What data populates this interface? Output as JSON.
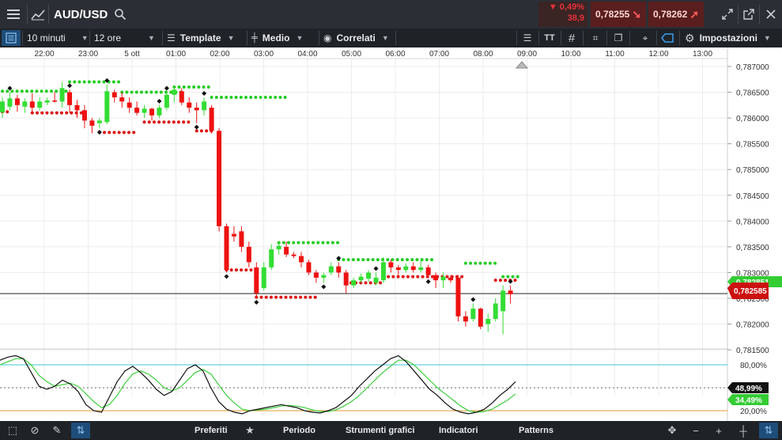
{
  "header": {
    "symbol": "AUD/USD",
    "change_percent": "▼ 0,49%",
    "change_points": "38,9",
    "sell_price": "0,78255",
    "buy_price": "0,78262"
  },
  "toolbar": {
    "timeframe": "10 minuti",
    "range": "12 ore",
    "template": "Template",
    "average": "Medio",
    "correlated": "Correlati",
    "settings": "Impostazioni",
    "text_tool": "TT"
  },
  "time_axis": [
    "22:00",
    "23:00",
    "5 ott",
    "01:00",
    "02:00",
    "03:00",
    "04:00",
    "05:00",
    "06:00",
    "07:00",
    "08:00",
    "09:00",
    "10:00",
    "11:00",
    "12:00",
    "13:00"
  ],
  "price_axis": [
    "0,787000",
    "0,786500",
    "0,786000",
    "0,785500",
    "0,785000",
    "0,784500",
    "0,784000",
    "0,783500",
    "0,783000",
    "0,782500",
    "0,782000",
    "0,781500"
  ],
  "current_price_label": "0,782585",
  "hidden_price_label": "0,782851",
  "oscillator": {
    "levels": [
      "80,00%",
      "20,00%"
    ],
    "value_black": "48,99%",
    "value_green": "34,49%"
  },
  "bottom": {
    "favorites": "Preferiti",
    "period": "Periodo",
    "chart_tools": "Strumenti grafici",
    "indicators": "Indicatori",
    "patterns": "Patterns"
  },
  "colors": {
    "bull": "#33dd33",
    "bear": "#ee1111",
    "toolbar": "#1f2328",
    "topbar": "#2b2f35",
    "accent_blue": "#1e7fd8"
  },
  "chart_data": {
    "type": "candlestick",
    "ylim": [
      0.7813,
      0.7873
    ],
    "candles": [
      {
        "t": "21:50",
        "o": 0.78611,
        "h": 0.7864,
        "l": 0.786,
        "c": 0.78632
      },
      {
        "t": "22:00",
        "o": 0.78622,
        "h": 0.7865,
        "l": 0.78615,
        "c": 0.78638
      },
      {
        "t": "22:10",
        "o": 0.78638,
        "h": 0.78645,
        "l": 0.78612,
        "c": 0.78625
      },
      {
        "t": "22:20",
        "o": 0.78622,
        "h": 0.78638,
        "l": 0.7861,
        "c": 0.78632
      },
      {
        "t": "22:30",
        "o": 0.78632,
        "h": 0.78648,
        "l": 0.78612,
        "c": 0.7862
      },
      {
        "t": "22:40",
        "o": 0.7862,
        "h": 0.7864,
        "l": 0.78615,
        "c": 0.78632
      },
      {
        "t": "22:50",
        "o": 0.7863,
        "h": 0.7864,
        "l": 0.78625,
        "c": 0.78634
      },
      {
        "t": "23:00",
        "o": 0.78634,
        "h": 0.7865,
        "l": 0.7863,
        "c": 0.78632
      },
      {
        "t": "23:10",
        "o": 0.78632,
        "h": 0.7867,
        "l": 0.7862,
        "c": 0.78658
      },
      {
        "t": "23:20",
        "o": 0.7865,
        "h": 0.78655,
        "l": 0.7861,
        "c": 0.78625
      },
      {
        "t": "23:30",
        "o": 0.78625,
        "h": 0.78635,
        "l": 0.786,
        "c": 0.78615
      },
      {
        "t": "23:40",
        "o": 0.78615,
        "h": 0.78625,
        "l": 0.7858,
        "c": 0.78595
      },
      {
        "t": "23:50",
        "o": 0.78595,
        "h": 0.786,
        "l": 0.7857,
        "c": 0.78585
      },
      {
        "t": "00:00",
        "o": 0.7859,
        "h": 0.786,
        "l": 0.7858,
        "c": 0.78595
      },
      {
        "t": "00:10",
        "o": 0.78592,
        "h": 0.78665,
        "l": 0.78588,
        "c": 0.78652
      },
      {
        "t": "00:20",
        "o": 0.7865,
        "h": 0.78655,
        "l": 0.7863,
        "c": 0.7864
      },
      {
        "t": "00:30",
        "o": 0.7864,
        "h": 0.7865,
        "l": 0.7862,
        "c": 0.78632
      },
      {
        "t": "00:40",
        "o": 0.7863,
        "h": 0.7864,
        "l": 0.7861,
        "c": 0.7862
      },
      {
        "t": "00:50",
        "o": 0.7862,
        "h": 0.78632,
        "l": 0.78605,
        "c": 0.7861
      },
      {
        "t": "01:00",
        "o": 0.7861,
        "h": 0.78625,
        "l": 0.786,
        "c": 0.78618
      },
      {
        "t": "01:10",
        "o": 0.78618,
        "h": 0.7862,
        "l": 0.78595,
        "c": 0.78605
      },
      {
        "t": "01:20",
        "o": 0.78605,
        "h": 0.78625,
        "l": 0.786,
        "c": 0.7862
      },
      {
        "t": "01:30",
        "o": 0.7862,
        "h": 0.7865,
        "l": 0.78615,
        "c": 0.78645
      },
      {
        "t": "01:40",
        "o": 0.78645,
        "h": 0.7866,
        "l": 0.7863,
        "c": 0.78655
      },
      {
        "t": "01:50",
        "o": 0.78652,
        "h": 0.78658,
        "l": 0.78625,
        "c": 0.7863
      },
      {
        "t": "02:00",
        "o": 0.7863,
        "h": 0.7864,
        "l": 0.7861,
        "c": 0.7862
      },
      {
        "t": "02:10",
        "o": 0.7862,
        "h": 0.7863,
        "l": 0.7859,
        "c": 0.78615
      },
      {
        "t": "02:20",
        "o": 0.78615,
        "h": 0.7864,
        "l": 0.78605,
        "c": 0.78632
      },
      {
        "t": "02:30",
        "o": 0.7862,
        "h": 0.78625,
        "l": 0.7857,
        "c": 0.78575
      },
      {
        "t": "02:40",
        "o": 0.78575,
        "h": 0.7858,
        "l": 0.7838,
        "c": 0.7839
      },
      {
        "t": "02:50",
        "o": 0.7839,
        "h": 0.78395,
        "l": 0.783,
        "c": 0.78305
      },
      {
        "t": "03:00",
        "o": 0.78375,
        "h": 0.7839,
        "l": 0.7836,
        "c": 0.7837
      },
      {
        "t": "03:10",
        "o": 0.7838,
        "h": 0.7839,
        "l": 0.7834,
        "c": 0.7835
      },
      {
        "t": "03:20",
        "o": 0.7835,
        "h": 0.7836,
        "l": 0.7831,
        "c": 0.7832
      },
      {
        "t": "03:30",
        "o": 0.7831,
        "h": 0.7832,
        "l": 0.7825,
        "c": 0.7826
      },
      {
        "t": "03:40",
        "o": 0.7827,
        "h": 0.7832,
        "l": 0.78265,
        "c": 0.7831
      },
      {
        "t": "03:50",
        "o": 0.7831,
        "h": 0.78355,
        "l": 0.78305,
        "c": 0.78345
      },
      {
        "t": "04:00",
        "o": 0.78345,
        "h": 0.7836,
        "l": 0.78335,
        "c": 0.78352
      },
      {
        "t": "04:10",
        "o": 0.7835,
        "h": 0.7836,
        "l": 0.7833,
        "c": 0.78335
      },
      {
        "t": "04:20",
        "o": 0.78335,
        "h": 0.7834,
        "l": 0.78328,
        "c": 0.78332
      },
      {
        "t": "04:30",
        "o": 0.78332,
        "h": 0.7834,
        "l": 0.7831,
        "c": 0.7832
      },
      {
        "t": "04:40",
        "o": 0.7832,
        "h": 0.78325,
        "l": 0.78295,
        "c": 0.783
      },
      {
        "t": "04:50",
        "o": 0.783,
        "h": 0.78305,
        "l": 0.7828,
        "c": 0.7829
      },
      {
        "t": "05:00",
        "o": 0.7829,
        "h": 0.783,
        "l": 0.7828,
        "c": 0.78295
      },
      {
        "t": "05:10",
        "o": 0.783,
        "h": 0.7832,
        "l": 0.78295,
        "c": 0.78312
      },
      {
        "t": "05:20",
        "o": 0.78312,
        "h": 0.7832,
        "l": 0.7829,
        "c": 0.783
      },
      {
        "t": "05:30",
        "o": 0.783,
        "h": 0.78305,
        "l": 0.7826,
        "c": 0.78275
      },
      {
        "t": "05:40",
        "o": 0.78275,
        "h": 0.7829,
        "l": 0.7827,
        "c": 0.78285
      },
      {
        "t": "05:50",
        "o": 0.78285,
        "h": 0.78298,
        "l": 0.7828,
        "c": 0.78292
      },
      {
        "t": "06:00",
        "o": 0.78288,
        "h": 0.78305,
        "l": 0.78282,
        "c": 0.783
      },
      {
        "t": "06:10",
        "o": 0.7828,
        "h": 0.783,
        "l": 0.78275,
        "c": 0.7829
      },
      {
        "t": "06:20",
        "o": 0.78285,
        "h": 0.7833,
        "l": 0.7828,
        "c": 0.7832
      },
      {
        "t": "06:30",
        "o": 0.7832,
        "h": 0.78325,
        "l": 0.783,
        "c": 0.7831
      },
      {
        "t": "06:40",
        "o": 0.7831,
        "h": 0.78315,
        "l": 0.78295,
        "c": 0.78305
      },
      {
        "t": "06:50",
        "o": 0.78305,
        "h": 0.78318,
        "l": 0.783,
        "c": 0.78312
      },
      {
        "t": "07:00",
        "o": 0.78312,
        "h": 0.7832,
        "l": 0.783,
        "c": 0.78305
      },
      {
        "t": "07:10",
        "o": 0.78305,
        "h": 0.78325,
        "l": 0.783,
        "c": 0.7831
      },
      {
        "t": "07:20",
        "o": 0.7831,
        "h": 0.78315,
        "l": 0.7829,
        "c": 0.78295
      },
      {
        "t": "07:30",
        "o": 0.78295,
        "h": 0.783,
        "l": 0.7827,
        "c": 0.78285
      },
      {
        "t": "07:40",
        "o": 0.78285,
        "h": 0.783,
        "l": 0.7827,
        "c": 0.78292
      },
      {
        "t": "07:50",
        "o": 0.7829,
        "h": 0.78295,
        "l": 0.7828,
        "c": 0.78285
      },
      {
        "t": "08:00",
        "o": 0.7829,
        "h": 0.78295,
        "l": 0.78205,
        "c": 0.78215
      },
      {
        "t": "08:10",
        "o": 0.78215,
        "h": 0.78225,
        "l": 0.78195,
        "c": 0.78205
      },
      {
        "t": "08:20",
        "o": 0.7821,
        "h": 0.7824,
        "l": 0.78205,
        "c": 0.7823
      },
      {
        "t": "08:30",
        "o": 0.7823,
        "h": 0.78232,
        "l": 0.7819,
        "c": 0.78195
      },
      {
        "t": "08:40",
        "o": 0.782,
        "h": 0.7822,
        "l": 0.78185,
        "c": 0.7821
      },
      {
        "t": "08:50",
        "o": 0.7821,
        "h": 0.7825,
        "l": 0.78205,
        "c": 0.7824
      },
      {
        "t": "09:00",
        "o": 0.78225,
        "h": 0.78275,
        "l": 0.7818,
        "c": 0.78265
      },
      {
        "t": "09:10",
        "o": 0.78265,
        "h": 0.78275,
        "l": 0.7824,
        "c": 0.78258
      }
    ]
  }
}
